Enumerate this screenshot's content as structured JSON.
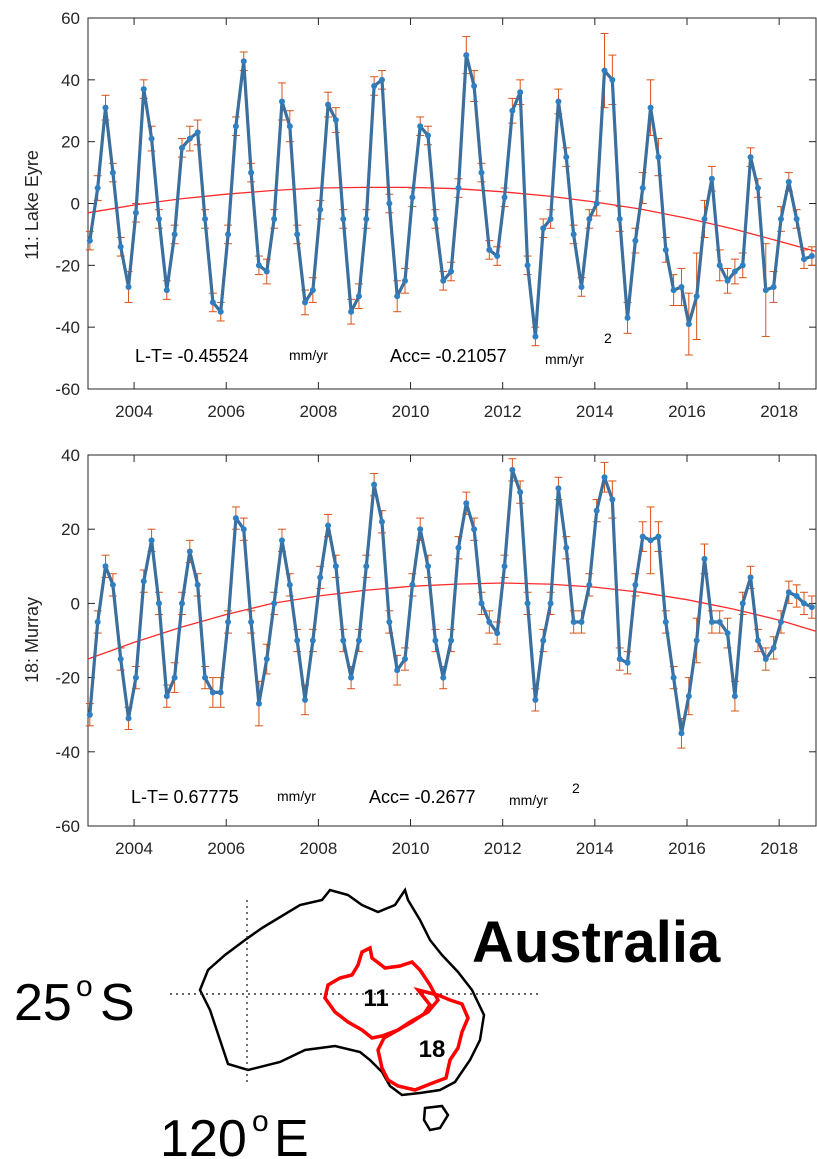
{
  "chart_data": [
    {
      "type": "line",
      "ylabel": "11: Lake Eyre",
      "xlabel": "",
      "title": "",
      "xlim": [
        2003.0,
        2018.8
      ],
      "ylim": [
        -60,
        60
      ],
      "yticks": [
        -60,
        -40,
        -20,
        0,
        20,
        40,
        60
      ],
      "xticks": [
        2004,
        2006,
        2008,
        2010,
        2012,
        2014,
        2016,
        2018
      ],
      "grid": false,
      "annotation": {
        "lt": "L-T= -0.45524",
        "lt_unit": "mm/yr",
        "acc": "Acc= -0.21057",
        "acc_unit": "mm/yr",
        "acc_exp": "2"
      },
      "trend_x": [
        2003.0,
        2004.0,
        2005.0,
        2006.0,
        2007.0,
        2008.0,
        2009.0,
        2010.0,
        2011.0,
        2012.0,
        2013.0,
        2014.0,
        2015.0,
        2016.0,
        2017.0,
        2018.0,
        2018.8
      ],
      "trend_y": [
        -3,
        -0.5,
        1.5,
        3,
        4.2,
        5,
        5.2,
        5.2,
        4.8,
        3.8,
        2.4,
        0.5,
        -1.8,
        -4.8,
        -8.2,
        -12.2,
        -15.5
      ],
      "series": [
        {
          "x": [
            2003.04,
            2003.21,
            2003.38,
            2003.54,
            2003.71,
            2003.88,
            2004.04,
            2004.21,
            2004.38,
            2004.54,
            2004.71,
            2004.88,
            2005.04,
            2005.21,
            2005.38,
            2005.54,
            2005.71,
            2005.88,
            2006.04,
            2006.21,
            2006.38,
            2006.54,
            2006.71,
            2006.88,
            2007.04,
            2007.21,
            2007.38,
            2007.54,
            2007.71,
            2007.88,
            2008.04,
            2008.21,
            2008.38,
            2008.54,
            2008.71,
            2008.88,
            2009.04,
            2009.21,
            2009.38,
            2009.54,
            2009.71,
            2009.88,
            2010.04,
            2010.21,
            2010.38,
            2010.54,
            2010.71,
            2010.88,
            2011.04,
            2011.21,
            2011.38,
            2011.54,
            2011.71,
            2011.88,
            2012.04,
            2012.21,
            2012.38,
            2012.54,
            2012.71,
            2012.88,
            2013.04,
            2013.21,
            2013.38,
            2013.54,
            2013.71,
            2013.88,
            2014.04,
            2014.21,
            2014.38,
            2014.54,
            2014.71,
            2014.88,
            2015.04,
            2015.21,
            2015.38,
            2015.54,
            2015.71,
            2015.88,
            2016.04,
            2016.21,
            2016.38,
            2016.54,
            2016.71,
            2016.88,
            2017.04,
            2017.21,
            2017.38,
            2017.54,
            2017.71,
            2017.88,
            2018.04,
            2018.21,
            2018.38,
            2018.54,
            2018.71
          ],
          "y": [
            -12,
            5,
            31,
            10,
            -14,
            -27,
            -3,
            37,
            21,
            -5,
            -28,
            -10,
            18,
            21,
            23,
            -5,
            -32,
            -35,
            -10,
            25,
            46,
            10,
            -20,
            -22,
            -5,
            33,
            25,
            -10,
            -32,
            -28,
            -2,
            32,
            27,
            -5,
            -35,
            -30,
            -5,
            38,
            40,
            0,
            -30,
            -25,
            2,
            25,
            22,
            -5,
            -25,
            -22,
            5,
            48,
            38,
            10,
            -15,
            -17,
            2,
            30,
            36,
            -20,
            -43,
            -8,
            -5,
            33,
            15,
            -10,
            -27,
            -5,
            0,
            43,
            40,
            -5,
            -37,
            -12,
            5,
            31,
            15,
            -15,
            -28,
            -27,
            -39,
            -30,
            -5,
            8,
            -20,
            -25,
            -22,
            -20,
            15,
            5,
            -28,
            -27,
            -5,
            7,
            -5,
            -18,
            -17
          ],
          "err": [
            3,
            4,
            4,
            3,
            3,
            5,
            3,
            3,
            4,
            3,
            3,
            3,
            3,
            4,
            4,
            3,
            3,
            3,
            3,
            3,
            3,
            3,
            3,
            4,
            3,
            6,
            5,
            3,
            4,
            4,
            3,
            4,
            4,
            3,
            4,
            4,
            3,
            3,
            3,
            3,
            5,
            4,
            3,
            3,
            3,
            3,
            3,
            3,
            3,
            6,
            5,
            3,
            3,
            3,
            3,
            4,
            4,
            3,
            3,
            3,
            3,
            4,
            3,
            3,
            3,
            3,
            4,
            12,
            8,
            4,
            5,
            4,
            5,
            9,
            6,
            4,
            5,
            6,
            10,
            14,
            6,
            4,
            5,
            4,
            4,
            4,
            3,
            3,
            15,
            5,
            4,
            3,
            3,
            3,
            3
          ]
        }
      ]
    },
    {
      "type": "line",
      "ylabel": "18: Murray",
      "xlabel": "",
      "title": "",
      "xlim": [
        2003.0,
        2018.8
      ],
      "ylim": [
        -60,
        40
      ],
      "yticks": [
        -60,
        -40,
        -20,
        0,
        20,
        40
      ],
      "xticks": [
        2004,
        2006,
        2008,
        2010,
        2012,
        2014,
        2016,
        2018
      ],
      "grid": false,
      "annotation": {
        "lt": "L-T= 0.67775",
        "lt_unit": "mm/yr",
        "acc": "Acc= -0.2677",
        "acc_unit": "mm/yr",
        "acc_exp": "2"
      },
      "trend_x": [
        2003.0,
        2004.0,
        2005.0,
        2006.0,
        2007.0,
        2008.0,
        2009.0,
        2010.0,
        2011.0,
        2012.0,
        2013.0,
        2014.0,
        2015.0,
        2016.0,
        2017.0,
        2018.0,
        2018.8
      ],
      "trend_y": [
        -15,
        -10.5,
        -6.5,
        -3,
        0,
        2,
        3.5,
        4.6,
        5.2,
        5.5,
        5.2,
        4.4,
        3.0,
        1.0,
        -1.5,
        -4.5,
        -7.5
      ],
      "series": [
        {
          "x": [
            2003.04,
            2003.21,
            2003.38,
            2003.54,
            2003.71,
            2003.88,
            2004.04,
            2004.21,
            2004.38,
            2004.54,
            2004.71,
            2004.88,
            2005.04,
            2005.21,
            2005.38,
            2005.54,
            2005.71,
            2005.88,
            2006.04,
            2006.21,
            2006.38,
            2006.54,
            2006.71,
            2006.88,
            2007.04,
            2007.21,
            2007.38,
            2007.54,
            2007.71,
            2007.88,
            2008.04,
            2008.21,
            2008.38,
            2008.54,
            2008.71,
            2008.88,
            2009.04,
            2009.21,
            2009.38,
            2009.54,
            2009.71,
            2009.88,
            2010.04,
            2010.21,
            2010.38,
            2010.54,
            2010.71,
            2010.88,
            2011.04,
            2011.21,
            2011.38,
            2011.54,
            2011.71,
            2011.88,
            2012.04,
            2012.21,
            2012.38,
            2012.54,
            2012.71,
            2012.88,
            2013.04,
            2013.21,
            2013.38,
            2013.54,
            2013.71,
            2013.88,
            2014.04,
            2014.21,
            2014.38,
            2014.54,
            2014.71,
            2014.88,
            2015.04,
            2015.21,
            2015.38,
            2015.54,
            2015.71,
            2015.88,
            2016.04,
            2016.21,
            2016.38,
            2016.54,
            2016.71,
            2016.88,
            2017.04,
            2017.21,
            2017.38,
            2017.54,
            2017.71,
            2017.88,
            2018.04,
            2018.21,
            2018.38,
            2018.54,
            2018.71
          ],
          "y": [
            -30,
            -5,
            10,
            5,
            -15,
            -31,
            -20,
            6,
            17,
            0,
            -25,
            -20,
            0,
            14,
            5,
            -20,
            -24,
            -24,
            -5,
            23,
            20,
            -5,
            -27,
            -15,
            0,
            17,
            5,
            -10,
            -26,
            -10,
            7,
            21,
            10,
            -10,
            -20,
            -10,
            10,
            32,
            22,
            -5,
            -18,
            -15,
            5,
            20,
            10,
            -10,
            -20,
            -10,
            15,
            27,
            20,
            0,
            -5,
            -8,
            10,
            36,
            30,
            0,
            -26,
            -10,
            0,
            31,
            15,
            -5,
            -5,
            5,
            25,
            34,
            28,
            -15,
            -16,
            5,
            18,
            17,
            18,
            -5,
            -20,
            -35,
            -25,
            -10,
            12,
            -5,
            -5,
            -8,
            -25,
            0,
            7,
            -10,
            -15,
            -12,
            -5,
            3,
            2,
            0,
            -1
          ],
          "err": [
            3,
            3,
            3,
            3,
            3,
            3,
            3,
            3,
            3,
            3,
            3,
            4,
            3,
            3,
            3,
            3,
            4,
            4,
            3,
            3,
            3,
            3,
            6,
            4,
            3,
            3,
            3,
            3,
            4,
            3,
            3,
            3,
            3,
            3,
            3,
            3,
            3,
            3,
            3,
            3,
            4,
            3,
            3,
            3,
            3,
            3,
            3,
            3,
            3,
            3,
            3,
            3,
            3,
            3,
            3,
            3,
            3,
            3,
            3,
            3,
            3,
            3,
            3,
            3,
            3,
            3,
            3,
            4,
            5,
            3,
            3,
            3,
            4,
            9,
            4,
            3,
            3,
            4,
            5,
            6,
            4,
            3,
            3,
            4,
            4,
            3,
            3,
            3,
            3,
            3,
            3,
            3,
            3,
            3,
            3
          ]
        }
      ]
    }
  ],
  "map": {
    "title": "Australia",
    "lat_label": "25",
    "lat_sup": "o",
    "lat_dir": "S",
    "lon_label": "120",
    "lon_sup": "o",
    "lon_dir": "E",
    "region_a": "11",
    "region_b": "18",
    "outline_color": "#000000",
    "region_color": "#ff0000"
  },
  "colors": {
    "line": "#3a6f9e",
    "marker": "#2f7fc1",
    "errorbar": "#d95319",
    "trend": "#ff2a2a"
  }
}
